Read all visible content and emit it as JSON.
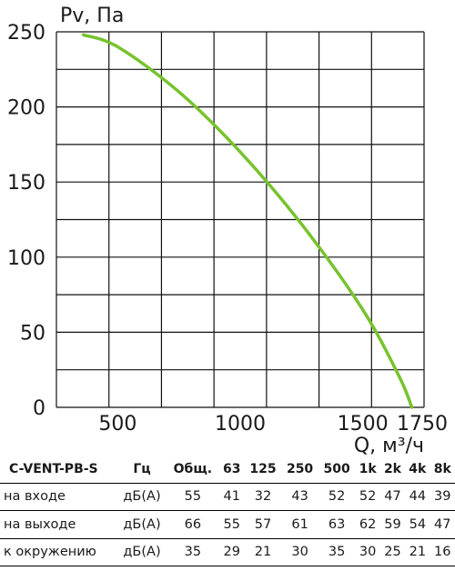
{
  "chart_data": {
    "type": "line",
    "ylabel": "Pv, Па",
    "xlabel": "Q, м³/ч",
    "xlim": [
      250,
      1750
    ],
    "ylim": [
      0,
      250
    ],
    "x_ticks": [
      500,
      1000,
      1500,
      1750
    ],
    "y_ticks": [
      0,
      50,
      100,
      150,
      200,
      250
    ],
    "grid": true,
    "series": [
      {
        "color": "#77c32e",
        "x": [
          360,
          500,
          750,
          1000,
          1250,
          1500,
          1650,
          1700
        ],
        "y": [
          248,
          240,
          210,
          170,
          122,
          65,
          20,
          0
        ]
      }
    ]
  },
  "table": {
    "title": "C-VENT-PB-S",
    "unit_header": "Гц",
    "columns": [
      "Общ.",
      "63",
      "125",
      "250",
      "500",
      "1k",
      "2k",
      "4k",
      "8k"
    ],
    "rows": [
      {
        "label": "на входе",
        "unit": "дБ(А)",
        "values": [
          "55",
          "41",
          "32",
          "43",
          "52",
          "52",
          "47",
          "44",
          "39"
        ]
      },
      {
        "label": "на выходе",
        "unit": "дБ(А)",
        "values": [
          "66",
          "55",
          "57",
          "61",
          "63",
          "62",
          "59",
          "54",
          "47"
        ]
      },
      {
        "label": "к окружению",
        "unit": "дБ(А)",
        "values": [
          "35",
          "29",
          "21",
          "30",
          "35",
          "30",
          "25",
          "21",
          "16"
        ]
      }
    ]
  }
}
